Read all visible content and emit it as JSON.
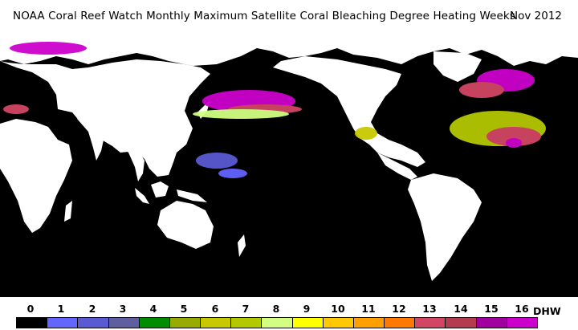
{
  "header": {
    "title": "NOAA  Coral  Reef  Watch  Monthly  Maximum  Satellite  Coral  Bleaching  Degree  Heating  Weeks",
    "date": "Nov 2012"
  },
  "colors": {
    "ocean": "#000000",
    "land": "#ffffff",
    "ice_magenta": "#cc00cc"
  },
  "legend": {
    "labels": [
      "0",
      "1",
      "2",
      "3",
      "4",
      "5",
      "6",
      "7",
      "8",
      "9",
      "10",
      "11",
      "12",
      "13",
      "14",
      "15",
      "16"
    ],
    "unit": "DHW",
    "swatch_colors": [
      "#000000",
      "#6464ff",
      "#5a5ad2",
      "#5f5fa0",
      "#008c00",
      "#96aa00",
      "#c8c800",
      "#b4c800",
      "#d2ff82",
      "#ffff00",
      "#ffc800",
      "#ffa000",
      "#ff7800",
      "#d24664",
      "#b43c50",
      "#a000a0",
      "#cc00cc"
    ]
  }
}
